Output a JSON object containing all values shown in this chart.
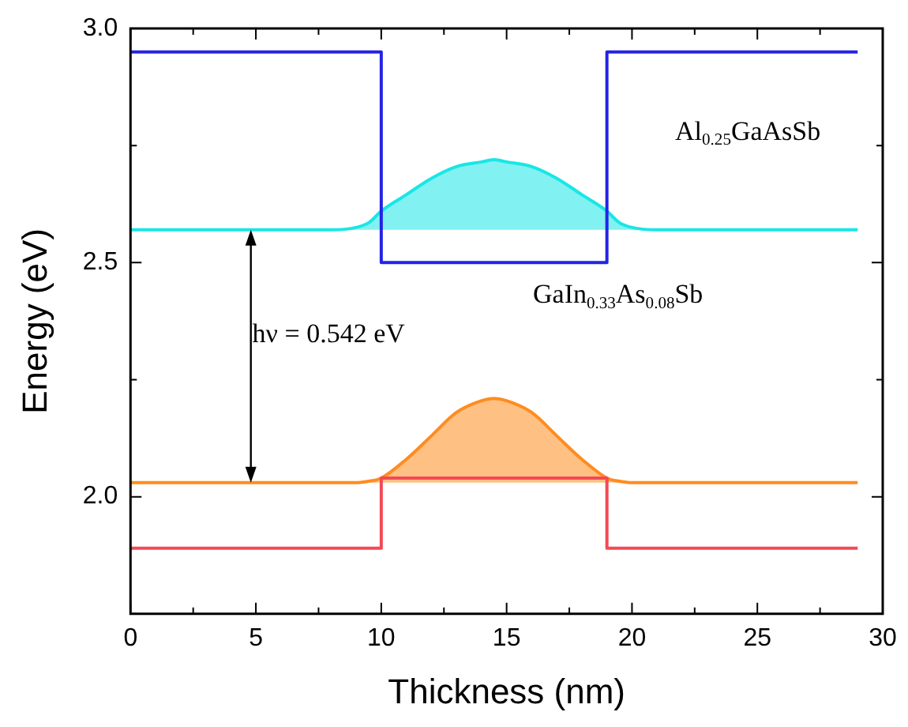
{
  "chart_data": {
    "type": "line",
    "xlabel": "Thickness (nm)",
    "ylabel": "Energy (eV)",
    "xlim": [
      0,
      30
    ],
    "xticks": [
      0,
      {
        "value": 2.5,
        "label": null
      },
      5,
      {
        "value": 7.5,
        "label": null
      },
      10,
      {
        "value": 12.5,
        "label": null
      },
      15,
      {
        "value": 17.5,
        "label": null
      },
      20,
      {
        "value": 22.5,
        "label": null
      },
      25,
      {
        "value": 27.5,
        "label": null
      },
      30
    ],
    "ylim": [
      1.75,
      3.0
    ],
    "yticks": [
      {
        "value": 1.75,
        "label": null
      },
      {
        "value": 2,
        "label": "2.0"
      },
      {
        "value": 2.25,
        "label": null
      },
      2.5,
      {
        "value": 2.75,
        "label": null
      },
      {
        "value": 3,
        "label": "3.0"
      }
    ],
    "grid": false,
    "legend": false,
    "marker": "none",
    "line_style": "solid",
    "series": [
      {
        "type": "line",
        "color": "#2323e6",
        "x": [
          0,
          10,
          10,
          19,
          19,
          29
        ],
        "values": [
          2.95,
          2.95,
          2.5,
          2.5,
          2.95,
          2.95
        ]
      },
      {
        "type": "line",
        "color": "#f24a55",
        "x": [
          0,
          10,
          10,
          19,
          19,
          29
        ],
        "values": [
          1.89,
          1.89,
          2.04,
          2.04,
          1.89,
          1.89
        ]
      },
      {
        "type": "area",
        "color": "#19e6e6",
        "x": [
          0,
          8,
          9,
          9.5,
          10,
          11,
          12,
          13,
          14,
          14.5,
          15,
          16,
          17,
          18,
          19,
          19.5,
          20,
          21,
          29
        ],
        "values": [
          2.57,
          2.57,
          2.575,
          2.585,
          2.61,
          2.645,
          2.68,
          2.705,
          2.715,
          2.72,
          2.715,
          2.705,
          2.68,
          2.645,
          2.61,
          2.585,
          2.575,
          2.57,
          2.57
        ]
      },
      {
        "type": "area",
        "color": "#ff8c1f",
        "x": [
          0,
          9,
          9.5,
          10,
          11,
          12,
          13,
          14,
          14.5,
          15,
          16,
          17,
          18,
          19,
          19.5,
          20,
          29
        ],
        "values": [
          2.03,
          2.03,
          2.033,
          2.04,
          2.08,
          2.13,
          2.18,
          2.205,
          2.21,
          2.205,
          2.18,
          2.13,
          2.08,
          2.04,
          2.033,
          2.03,
          2.03
        ]
      }
    ],
    "annotations": [
      "Al$_{0.25}$GaAsSb",
      "GaIn$_{0.33}$As$_{0.08}$Sb",
      "hν = 0.542 eV"
    ]
  }
}
